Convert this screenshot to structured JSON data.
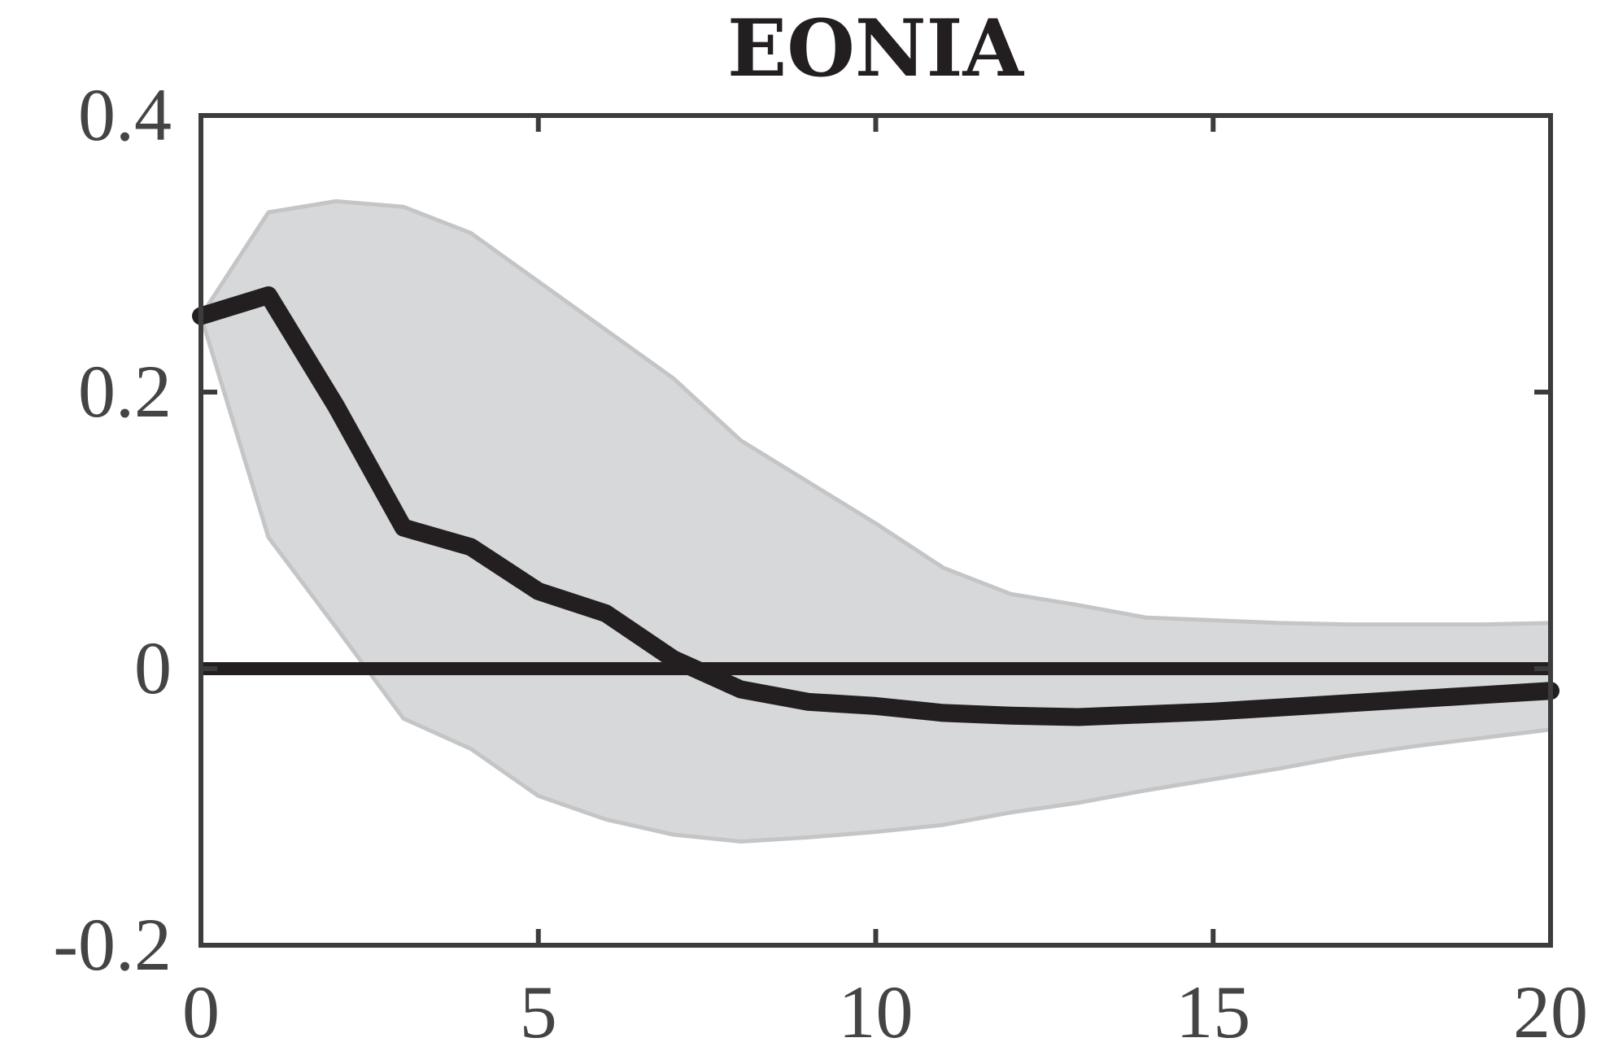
{
  "chart_data": {
    "type": "line",
    "title": "EONIA",
    "xlabel": "",
    "ylabel": "",
    "xlim": [
      0,
      20
    ],
    "ylim": [
      -0.2,
      0.4
    ],
    "xticks": [
      "0",
      "5",
      "10",
      "15",
      "20"
    ],
    "yticks": [
      "-0.2",
      "0",
      "0.2",
      "0.4"
    ],
    "grid": false,
    "x": [
      0,
      1,
      2,
      3,
      4,
      5,
      6,
      7,
      8,
      9,
      10,
      11,
      12,
      13,
      14,
      15,
      16,
      17,
      18,
      19,
      20
    ],
    "series": [
      {
        "role": "median",
        "color": "#231f20",
        "values": [
          0.255,
          0.27,
          0.19,
          0.102,
          0.088,
          0.056,
          0.04,
          0.007,
          -0.015,
          -0.024,
          -0.027,
          -0.032,
          -0.034,
          -0.035,
          -0.033,
          -0.031,
          -0.028,
          -0.025,
          -0.022,
          -0.019,
          -0.016
        ]
      },
      {
        "role": "band_upper",
        "color": "#d7d8da",
        "values": [
          0.255,
          0.33,
          0.338,
          0.334,
          0.315,
          0.28,
          0.245,
          0.21,
          0.165,
          0.135,
          0.105,
          0.073,
          0.054,
          0.046,
          0.037,
          0.035,
          0.033,
          0.032,
          0.032,
          0.032,
          0.033
        ]
      },
      {
        "role": "band_lower",
        "color": "#d7d8da",
        "values": [
          0.255,
          0.095,
          0.03,
          -0.036,
          -0.058,
          -0.092,
          -0.109,
          -0.12,
          -0.125,
          -0.122,
          -0.118,
          -0.113,
          -0.104,
          -0.097,
          -0.088,
          -0.08,
          -0.072,
          -0.063,
          -0.056,
          -0.05,
          -0.044
        ]
      }
    ],
    "reference_line": {
      "y": 0,
      "color": "#231f20"
    }
  }
}
